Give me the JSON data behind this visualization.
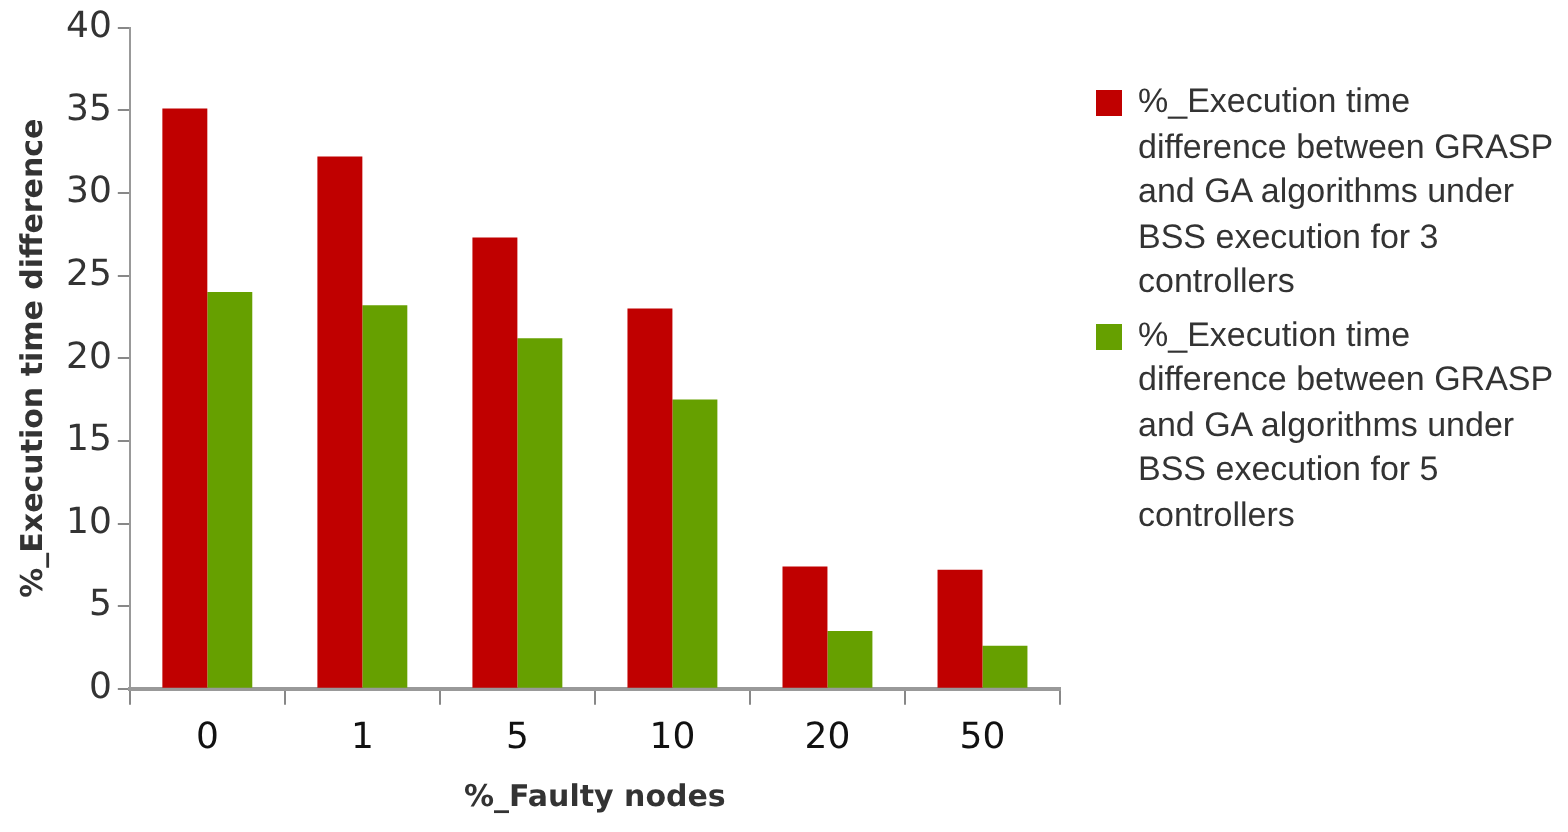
{
  "chart_data": {
    "type": "bar",
    "categories": [
      "0",
      "1",
      "5",
      "10",
      "20",
      "50"
    ],
    "series": [
      {
        "name": "%_Execution time difference between GRASP and GA algorithms under BSS execution for 3 controllers",
        "color": "#c00000",
        "values": [
          35.1,
          32.2,
          27.3,
          23,
          7.4,
          7.2
        ]
      },
      {
        "name": "%_Execution time difference between GRASP and GA algorithms under BSS execution for 5 controllers",
        "color": "#66a000",
        "values": [
          24,
          23.2,
          21.2,
          17.5,
          3.5,
          2.6
        ]
      }
    ],
    "xlabel": "%_Faulty nodes",
    "ylabel": "%_Execution time difference",
    "ylim": [
      0,
      40
    ],
    "yticks": [
      0,
      5,
      10,
      15,
      20,
      25,
      30,
      35,
      40
    ],
    "grid": false,
    "legend": "right"
  }
}
